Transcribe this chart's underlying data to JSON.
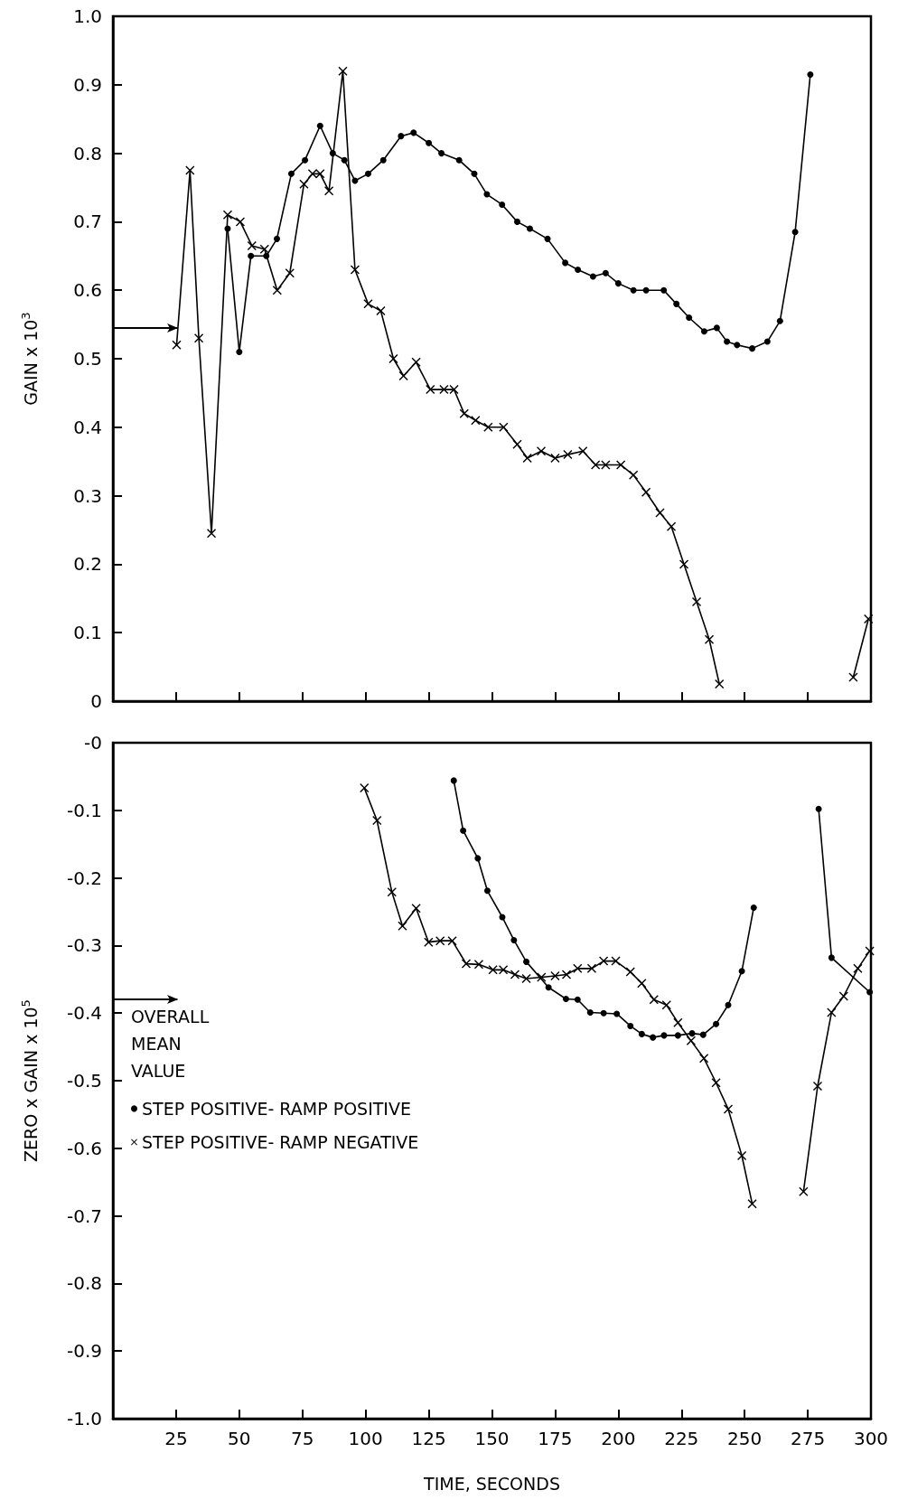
{
  "chart_data": [
    {
      "type": "line",
      "ylabel": "GAIN x 10$^{3}$",
      "xlim": [
        0,
        300
      ],
      "xticks": [
        25,
        50,
        75,
        100,
        125,
        150,
        175,
        200,
        225,
        250,
        275,
        300
      ],
      "ylim": [
        0,
        1
      ],
      "yticks": [
        0,
        0.1,
        0.2,
        0.3,
        0.4,
        0.5,
        0.6,
        0.7,
        0.8,
        0.9,
        {
          "value": 1,
          "label": "1.0"
        }
      ],
      "tick_labels": "y",
      "grid": false,
      "legend": false,
      "line_style": "solid",
      "ref_lines": [
        {
          "axis": "y",
          "value": 0.545,
          "label": null
        }
      ],
      "series": [
        {
          "color": "#000000",
          "marker": "circle",
          "x": [
            45.4,
            50,
            54.6,
            60.7,
            64.9,
            70.6,
            76,
            82,
            87,
            91.6,
            95.8,
            101,
            107,
            114,
            119,
            125,
            130,
            137,
            143,
            148,
            154,
            160,
            165,
            172,
            179,
            184,
            190,
            195,
            200,
            206,
            211,
            218,
            223,
            228,
            234,
            239,
            243,
            247,
            253,
            259,
            264,
            270,
            276
          ],
          "values": [
            0.69,
            0.51,
            0.65,
            0.65,
            0.675,
            0.77,
            0.79,
            0.84,
            0.8,
            0.79,
            0.76,
            0.77,
            0.79,
            0.825,
            0.83,
            0.815,
            0.8,
            0.79,
            0.77,
            0.74,
            0.725,
            0.7,
            0.69,
            0.675,
            0.64,
            0.63,
            0.62,
            0.625,
            0.61,
            0.6,
            0.6,
            0.6,
            0.58,
            0.56,
            0.54,
            0.545,
            0.525,
            0.52,
            0.515,
            0.525,
            0.555,
            0.685,
            0.915
          ]
        },
        {
          "color": "#000000",
          "marker": "cross",
          "x": [
            25.2,
            30.5,
            34,
            39,
            45.4,
            50.4,
            55,
            60,
            65,
            70,
            75.6,
            79,
            82,
            85.5,
            91,
            95.8,
            101,
            106,
            111,
            115,
            120,
            125.6,
            131,
            135,
            139,
            143.5,
            148.5,
            154.6,
            160,
            164,
            169.5,
            175,
            180,
            186,
            191,
            195,
            201,
            206,
            211,
            216.5,
            221,
            226,
            231,
            236,
            240,
            266,
            293,
            299
          ],
          "values": [
            0.52,
            0.775,
            0.53,
            0.245,
            0.71,
            0.7,
            0.665,
            0.66,
            0.6,
            0.625,
            0.755,
            0.77,
            0.77,
            0.745,
            0.92,
            0.63,
            0.58,
            0.57,
            0.5,
            0.475,
            0.495,
            0.455,
            0.455,
            0.455,
            0.42,
            0.41,
            0.4,
            0.4,
            0.375,
            0.355,
            0.365,
            0.355,
            0.36,
            0.365,
            0.345,
            0.345,
            0.345,
            0.33,
            0.305,
            0.275,
            0.255,
            0.2,
            0.145,
            0.09,
            0.025,
            null,
            0.035,
            0.12
          ]
        }
      ]
    },
    {
      "type": "line",
      "xlabel": "TIME, SECONDS",
      "ylabel": "ZERO x GAIN x 10$^{5}$",
      "xlim": [
        0,
        300
      ],
      "xticks": [
        25,
        50,
        75,
        100,
        125,
        150,
        175,
        200,
        225,
        250,
        275,
        300
      ],
      "ylim": [
        -1,
        0
      ],
      "yticks": [
        {
          "value": -1,
          "label": "-1.0"
        },
        -0.9,
        -0.8,
        -0.7,
        -0.6,
        -0.5,
        -0.4,
        -0.3,
        -0.2,
        -0.1,
        {
          "value": 0,
          "label": "-0"
        }
      ],
      "grid": false,
      "legend": "left",
      "line_style": "solid",
      "ref_lines": [
        {
          "axis": "y",
          "value": -0.38,
          "label": "OVERALL MEAN VALUE"
        }
      ],
      "series": [
        {
          "name": "STEP POSITIVE- RAMP POSITIVE",
          "color": "#000000",
          "marker": "circle",
          "x": [
            134.9,
            138.6,
            144.4,
            148.2,
            154.1,
            158.7,
            163.6,
            172.4,
            179.3,
            183.9,
            188.9,
            194.2,
            199.4,
            204.8,
            209.3,
            213.7,
            218.1,
            223.6,
            229.2,
            233.6,
            238.7,
            243.5,
            248.9,
            253.6,
            266,
            279.3,
            284.4,
            299.5
          ],
          "values": [
            -0.056,
            -0.13,
            -0.171,
            -0.219,
            -0.258,
            -0.292,
            -0.324,
            -0.362,
            -0.379,
            -0.38,
            -0.399,
            -0.4,
            -0.401,
            -0.419,
            -0.431,
            -0.436,
            -0.433,
            -0.433,
            -0.43,
            -0.432,
            -0.416,
            -0.388,
            -0.338,
            -0.244,
            null,
            -0.098,
            -0.318,
            -0.369
          ]
        },
        {
          "name": "STEP POSITIVE- RAMP NEGATIVE",
          "color": "#000000",
          "marker": "cross",
          "x": [
            99.5,
            104.5,
            110.4,
            114.6,
            120,
            124.9,
            129.5,
            134.3,
            139.8,
            144.8,
            150.4,
            154.5,
            159.1,
            163.6,
            169.6,
            175,
            179.5,
            183.9,
            189.5,
            194.2,
            199,
            204.8,
            209.3,
            214.1,
            219.1,
            223.6,
            228.8,
            233.9,
            238.7,
            243.5,
            248.9,
            253,
            263,
            273.3,
            278.9,
            284.4,
            289.2,
            294.8,
            299.5
          ],
          "values": [
            -0.067,
            -0.115,
            -0.221,
            -0.271,
            -0.245,
            -0.295,
            -0.293,
            -0.293,
            -0.327,
            -0.328,
            -0.336,
            -0.336,
            -0.343,
            -0.349,
            -0.347,
            -0.345,
            -0.343,
            -0.334,
            -0.334,
            -0.323,
            -0.323,
            -0.339,
            -0.356,
            -0.38,
            -0.388,
            -0.414,
            -0.441,
            -0.467,
            -0.503,
            -0.542,
            -0.611,
            -0.682,
            null,
            -0.664,
            -0.508,
            -0.399,
            -0.375,
            -0.334,
            -0.308
          ]
        }
      ]
    }
  ]
}
